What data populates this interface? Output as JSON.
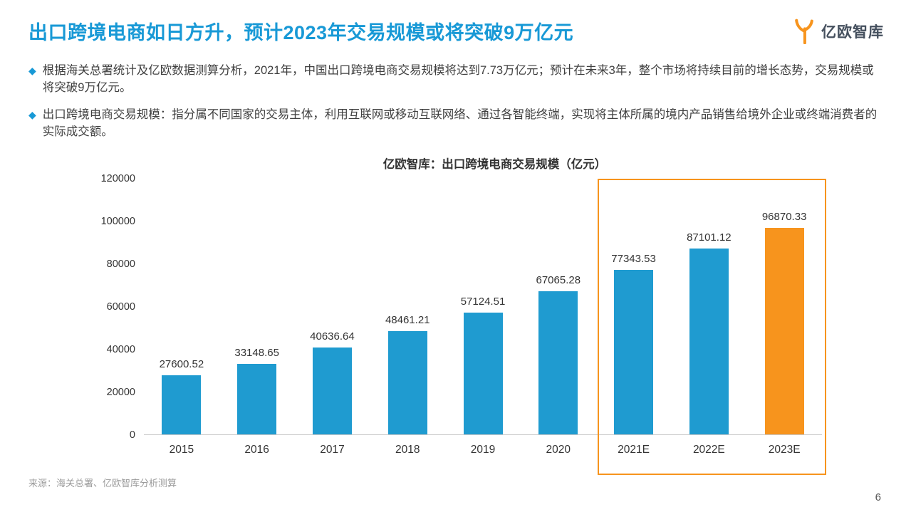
{
  "header": {
    "title": "出口跨境电商如日方升，预计2023年交易规模或将突破9万亿元",
    "brand": "亿欧智库"
  },
  "icons": {
    "bullet_diamond": "◆"
  },
  "bullets": [
    "根据海关总署统计及亿欧数据测算分析，2021年，中国出口跨境电商交易规模将达到7.73万亿元；预计在未来3年，整个市场将持续目前的增长态势，交易规模或将突破9万亿元。",
    "出口跨境电商交易规模：指分属不同国家的交易主体，利用互联网或移动互联网络、通过各智能终端，实现将主体所属的境内产品销售给境外企业或终端消费者的实际成交额。"
  ],
  "chart_data": {
    "type": "bar",
    "title": "亿欧智库：出口跨境电商交易规模（亿元）",
    "categories": [
      "2015",
      "2016",
      "2017",
      "2018",
      "2019",
      "2020",
      "2021E",
      "2022E",
      "2023E"
    ],
    "values": [
      27600.52,
      33148.65,
      40636.64,
      48461.21,
      57124.51,
      67065.28,
      77343.53,
      87101.12,
      96870.33
    ],
    "ylim": [
      0,
      120000
    ],
    "ytick_step": 20000,
    "grid": false,
    "value_labels": true,
    "bar_color": "#1f9bd0",
    "highlight_index": 8,
    "highlight_color": "#f7941d",
    "highlight_frame_categories": [
      "2021E",
      "2022E",
      "2023E"
    ],
    "frame_color": "#f7941d"
  },
  "colors": {
    "title_blue": "#1899d6",
    "brand_orange": "#f7941d"
  },
  "footer": {
    "source": "来源：海关总署、亿欧智库分析测算",
    "page_number": "6"
  }
}
